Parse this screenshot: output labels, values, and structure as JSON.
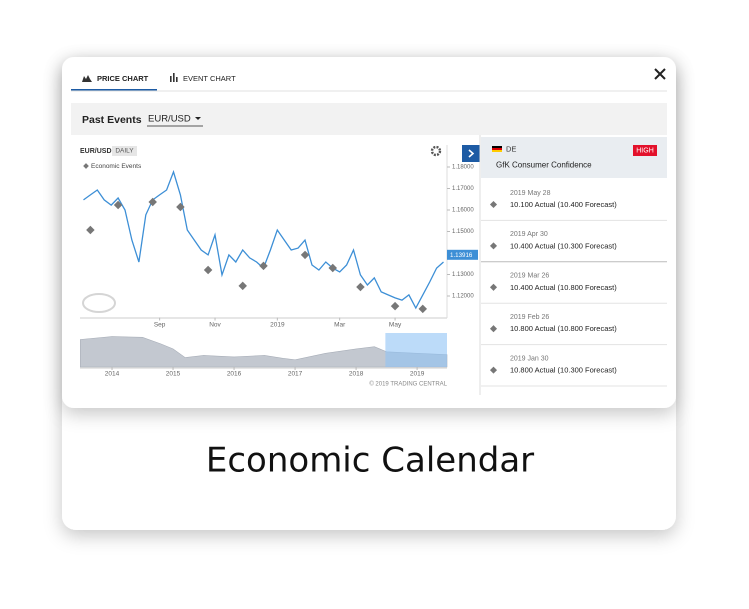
{
  "tabs": [
    "PRICE CHART",
    "EVENT CHART"
  ],
  "toolbar": {
    "title": "Past Events",
    "symbol": "EUR/USD"
  },
  "chart_data": [
    {
      "type": "line",
      "period": "DAILY",
      "categories": [
        null,
        null,
        null,
        null,
        null,
        null,
        null,
        null,
        null,
        null,
        null,
        "Sep",
        null,
        null,
        null,
        null,
        null,
        null,
        null,
        "Nov",
        null,
        null,
        null,
        null,
        null,
        null,
        null,
        null,
        "2019",
        null,
        null,
        null,
        null,
        null,
        null,
        null,
        null,
        "Mar",
        null,
        null,
        null,
        null,
        null,
        null,
        null,
        "May",
        null,
        null,
        null,
        null,
        null,
        null,
        null
      ],
      "series": [
        {
          "name": "EUR/USD",
          "color": "#3d8fd6",
          "values": [
            1.1647,
            1.167,
            1.1693,
            1.1647,
            1.1623,
            1.1656,
            1.16,
            1.146,
            1.1358,
            1.1577,
            1.1647,
            1.167,
            1.1693,
            1.1777,
            1.167,
            1.1507,
            1.146,
            1.1414,
            1.1391,
            1.1484,
            1.1298,
            1.1391,
            1.1358,
            1.1414,
            1.1377,
            1.1358,
            1.133,
            1.1414,
            1.1507,
            1.146,
            1.1414,
            1.1423,
            1.146,
            1.1344,
            1.1321,
            1.1358,
            1.133,
            1.1312,
            1.1344,
            1.1414,
            1.1298,
            1.1251,
            1.1284,
            1.1219,
            1.1205,
            1.1191,
            1.1181,
            1.1205,
            1.1144,
            1.1205,
            1.1265,
            1.133,
            1.1358
          ]
        },
        {
          "name": "Economic Events",
          "color": "#777777",
          "marker": "diamond",
          "values": [
            null,
            1.1507,
            null,
            null,
            null,
            1.1623,
            null,
            null,
            null,
            null,
            1.1637,
            null,
            null,
            null,
            1.1614,
            null,
            null,
            null,
            1.1321,
            null,
            null,
            null,
            null,
            1.1247,
            null,
            null,
            1.134,
            null,
            null,
            null,
            null,
            null,
            1.1391,
            null,
            null,
            null,
            1.133,
            null,
            null,
            null,
            1.1242,
            null,
            null,
            null,
            null,
            1.1153,
            null,
            null,
            null,
            1.114,
            null,
            null,
            null
          ]
        }
      ],
      "ylim": [
        1.11,
        1.19
      ],
      "yticks": [
        {
          "value": 1.18,
          "label": "1.18000"
        },
        {
          "value": 1.17,
          "label": "1.17000"
        },
        {
          "value": 1.16,
          "label": "1.16000"
        },
        {
          "value": 1.15,
          "label": "1.15000"
        },
        {
          "value": 1.14,
          "label": "1.14000"
        },
        {
          "value": 1.13,
          "label": "1.13000"
        },
        {
          "value": 1.12,
          "label": "1.12000"
        }
      ],
      "last_price": 1.13916
    },
    {
      "type": "area",
      "color": "#c3c8d0",
      "x": [
        2013.48,
        2014,
        2014.5,
        2014.8,
        2015,
        2015.2,
        2015.5,
        2016,
        2016.5,
        2016.8,
        2017,
        2017.5,
        2018,
        2018.3,
        2018.5,
        2019,
        2019.49
      ],
      "values": [
        1.33,
        1.37,
        1.36,
        1.27,
        1.2,
        1.08,
        1.11,
        1.09,
        1.11,
        1.07,
        1.05,
        1.14,
        1.2,
        1.23,
        1.16,
        1.14,
        1.12
      ],
      "xlim": [
        2013.475,
        2019.49
      ],
      "ylim": [
        0.95,
        1.42
      ],
      "xticks": [
        2014,
        2015,
        2016,
        2017,
        2018,
        2019
      ],
      "selection": [
        2018.48,
        2019.49
      ],
      "credit": "© 2019 TRADING CENTRAL"
    }
  ],
  "event": {
    "country": "DE",
    "importance": "HIGH",
    "title": "GfK Consumer Confidence",
    "history": [
      {
        "date": "2019 May 28",
        "result": "10.100 Actual (10.400 Forecast)"
      },
      {
        "date": "2019 Apr 30",
        "result": "10.400 Actual (10.300 Forecast)"
      },
      {
        "date": "2019 Mar 26",
        "result": "10.400 Actual (10.800 Forecast)"
      },
      {
        "date": "2019 Feb 26",
        "result": "10.800 Actual (10.800 Forecast)"
      },
      {
        "date": "2019 Jan 30",
        "result": "10.800 Actual (10.300 Forecast)"
      }
    ]
  },
  "caption": "Economic Calendar"
}
